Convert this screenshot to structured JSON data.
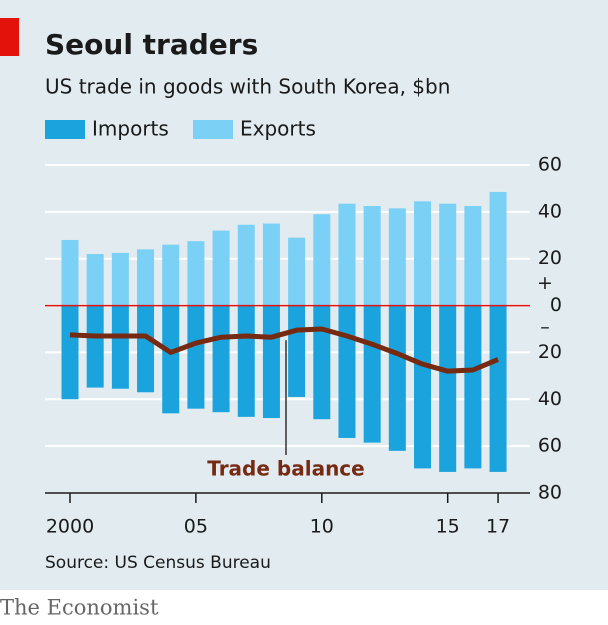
{
  "chart_data": {
    "type": "bar",
    "title": "Seoul traders",
    "subtitle": "US trade in goods with South Korea, $bn",
    "categories": [
      "2000",
      null,
      null,
      null,
      null,
      "05",
      null,
      null,
      null,
      null,
      "10",
      null,
      null,
      null,
      null,
      "15",
      null,
      "17"
    ],
    "series": [
      {
        "name": "Imports",
        "type": "bar",
        "color": "#1aa3dc",
        "values": [
          -40,
          -35,
          -35.5,
          -37,
          -46,
          -44,
          -45.5,
          -47.5,
          -48,
          -39,
          -48.5,
          -56.5,
          -58.5,
          -62,
          -69.5,
          -71,
          -69.5,
          -71
        ]
      },
      {
        "name": "Exports",
        "type": "bar",
        "color": "#7bd0f5",
        "values": [
          28,
          22,
          22.5,
          24,
          26,
          27.5,
          32,
          34.5,
          35,
          29,
          39,
          43.5,
          42.5,
          41.5,
          44.5,
          43.5,
          42.5,
          48.5
        ]
      },
      {
        "name": "Trade balance",
        "type": "line",
        "color": "#772a12",
        "values": [
          -12.5,
          -13,
          -13,
          -13,
          -20,
          -16,
          -13.5,
          -13,
          -13.5,
          -10.5,
          -10,
          -13,
          -16.5,
          -20.5,
          -25,
          -28,
          -27.5,
          -23
        ]
      }
    ],
    "ylim": [
      -80,
      60
    ],
    "yticks": [
      {
        "value": -80,
        "label": "80"
      },
      {
        "value": -60,
        "label": "60"
      },
      {
        "value": -40,
        "label": "40"
      },
      {
        "value": -20,
        "label": "20"
      },
      0,
      20,
      40,
      60
    ],
    "y_sign_labels": {
      "positive": "+",
      "negative": "–"
    },
    "grid": true,
    "zero_line_color": "#e3120b",
    "source": "Source: US Census Bureau",
    "brand": "The Economist"
  }
}
